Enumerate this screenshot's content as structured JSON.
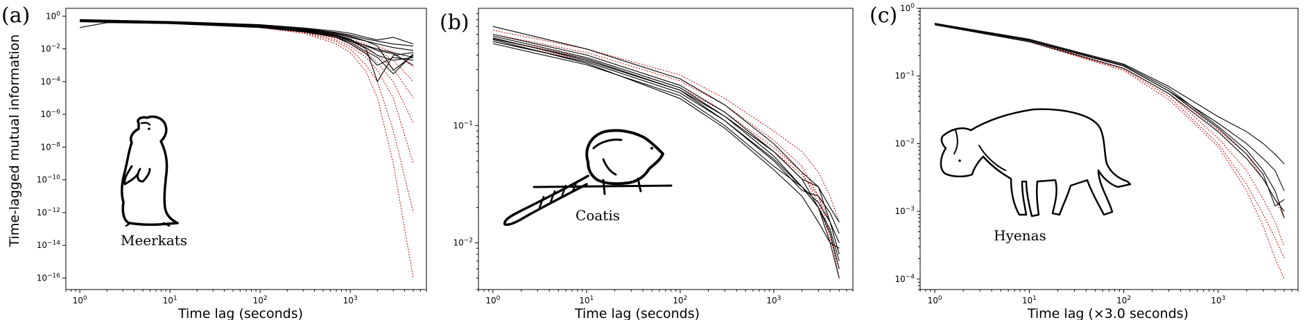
{
  "chart_data": [
    {
      "type": "line",
      "panel_label": "(a)",
      "title": "",
      "xlabel": "Time lag (seconds)",
      "ylabel": "Time-lagged mutual information",
      "xscale": "log",
      "yscale": "log",
      "xlim": [
        0.7,
        7000
      ],
      "ylim": [
        2e-17,
        3
      ],
      "xticks": [
        {
          "v": 1,
          "label": "10^0"
        },
        {
          "v": 10,
          "label": "10^1"
        },
        {
          "v": 100,
          "label": "10^2"
        },
        {
          "v": 1000,
          "label": "10^3"
        }
      ],
      "yticks": [
        {
          "v": 1,
          "label": "10^0"
        },
        {
          "v": 0.01,
          "label": "10^-2"
        },
        {
          "v": 0.0001,
          "label": "10^-4"
        },
        {
          "v": 1e-06,
          "label": "10^-6"
        },
        {
          "v": 1e-08,
          "label": "10^-8"
        },
        {
          "v": 1e-10,
          "label": "10^-10"
        },
        {
          "v": 1e-12,
          "label": "10^-12"
        },
        {
          "v": 1e-14,
          "label": "10^-14"
        },
        {
          "v": 1e-16,
          "label": "10^-16"
        }
      ],
      "grid": false,
      "animal_label": "Meerkats",
      "animal_icon": "meerkat-silhouette",
      "series_colors": {
        "data": "#000000",
        "fit": "#c00000"
      },
      "data_series": [
        {
          "x": [
            1,
            10,
            100,
            300,
            700,
            1000,
            1500,
            2000,
            3000,
            5000
          ],
          "y": [
            0.55,
            0.42,
            0.25,
            0.15,
            0.08,
            0.05,
            0.03,
            0.02,
            0.012,
            0.008
          ]
        },
        {
          "x": [
            1,
            10,
            100,
            300,
            700,
            1000,
            1500,
            2000,
            3000,
            5000
          ],
          "y": [
            0.6,
            0.45,
            0.28,
            0.18,
            0.1,
            0.07,
            0.04,
            0.03,
            0.02,
            0.015
          ]
        },
        {
          "x": [
            1,
            10,
            100,
            300,
            700,
            1000,
            1500,
            2000,
            3000,
            5000
          ],
          "y": [
            0.5,
            0.38,
            0.22,
            0.12,
            0.06,
            0.03,
            0.012,
            0.004,
            0.002,
            0.003
          ]
        },
        {
          "x": [
            1,
            10,
            100,
            300,
            700,
            1000,
            1500,
            2000,
            3000,
            5000
          ],
          "y": [
            0.45,
            0.35,
            0.2,
            0.11,
            0.05,
            0.02,
            0.005,
            0.001,
            0.003,
            0.002
          ]
        },
        {
          "x": [
            1,
            10,
            100,
            300,
            700,
            1000,
            1500,
            2000,
            3000,
            5000
          ],
          "y": [
            0.52,
            0.4,
            0.24,
            0.14,
            0.07,
            0.04,
            0.01,
            0.0001,
            0.004,
            0.006
          ]
        },
        {
          "x": [
            1,
            10,
            100,
            300,
            700,
            1000,
            1500,
            2000,
            3000,
            5000
          ],
          "y": [
            0.58,
            0.44,
            0.27,
            0.16,
            0.09,
            0.06,
            0.03,
            0.015,
            0.0005,
            0.004
          ]
        },
        {
          "x": [
            1,
            10,
            100,
            300,
            700,
            1000,
            1500,
            2000,
            3000,
            5000
          ],
          "y": [
            0.62,
            0.47,
            0.3,
            0.19,
            0.12,
            0.09,
            0.05,
            0.035,
            0.05,
            0.02
          ]
        },
        {
          "x": [
            1,
            10,
            100,
            300,
            700,
            1000,
            1500,
            2000,
            3000,
            5000
          ],
          "y": [
            0.48,
            0.37,
            0.21,
            0.12,
            0.05,
            0.025,
            0.007,
            0.003,
            0.0003,
            0.005
          ]
        },
        {
          "x": [
            1,
            10,
            100,
            300,
            700,
            1000,
            1500,
            2000,
            3000,
            5000
          ],
          "y": [
            0.5,
            0.39,
            0.23,
            0.13,
            0.065,
            0.035,
            0.015,
            0.008,
            0.005,
            0.001
          ]
        },
        {
          "x": [
            1,
            2,
            4,
            10,
            100,
            300,
            700,
            1000,
            2000,
            5000
          ],
          "y": [
            0.2,
            0.4,
            0.38,
            0.35,
            0.22,
            0.13,
            0.06,
            0.03,
            0.01,
            0.003
          ]
        }
      ],
      "fit_series": [
        {
          "x": [
            1,
            10,
            100,
            300,
            700,
            1000,
            1500,
            2000,
            3000,
            5000
          ],
          "y": [
            0.55,
            0.4,
            0.2,
            0.09,
            0.02,
            0.006,
            0.0004,
            1e-05,
            1e-09,
            1e-16
          ]
        },
        {
          "x": [
            1,
            10,
            100,
            300,
            700,
            1000,
            1500,
            2000,
            3000,
            5000
          ],
          "y": [
            0.55,
            0.4,
            0.21,
            0.1,
            0.028,
            0.01,
            0.001,
            0.0001,
            1e-07,
            1e-12
          ]
        },
        {
          "x": [
            1,
            10,
            100,
            300,
            700,
            1000,
            1500,
            2000,
            3000,
            5000
          ],
          "y": [
            0.55,
            0.41,
            0.22,
            0.11,
            0.035,
            0.014,
            0.003,
            0.0005,
            1e-05,
            1e-09
          ]
        },
        {
          "x": [
            1,
            10,
            100,
            300,
            700,
            1000,
            1500,
            2000,
            3000,
            5000
          ],
          "y": [
            0.56,
            0.42,
            0.23,
            0.12,
            0.045,
            0.02,
            0.006,
            0.0015,
            0.0001,
            3e-07
          ]
        },
        {
          "x": [
            1,
            10,
            100,
            300,
            700,
            1000,
            1500,
            2000,
            3000,
            5000
          ],
          "y": [
            0.57,
            0.43,
            0.24,
            0.13,
            0.055,
            0.03,
            0.01,
            0.004,
            0.0006,
            1e-05
          ]
        },
        {
          "x": [
            1,
            10,
            100,
            300,
            700,
            1000,
            1500,
            2000,
            3000,
            5000
          ],
          "y": [
            0.58,
            0.44,
            0.26,
            0.15,
            0.07,
            0.04,
            0.018,
            0.008,
            0.002,
            0.0001
          ]
        },
        {
          "x": [
            1,
            10,
            100,
            300,
            700,
            1000,
            1500,
            2000,
            3000,
            5000
          ],
          "y": [
            0.6,
            0.45,
            0.28,
            0.17,
            0.09,
            0.055,
            0.03,
            0.015,
            0.006,
            0.0008
          ]
        }
      ]
    },
    {
      "type": "line",
      "panel_label": "(b)",
      "title": "",
      "xlabel": "Time lag (seconds)",
      "ylabel": "",
      "xscale": "log",
      "yscale": "log",
      "xlim": [
        0.7,
        7000
      ],
      "ylim": [
        0.004,
        1
      ],
      "xticks": [
        {
          "v": 1,
          "label": "10^0"
        },
        {
          "v": 10,
          "label": "10^1"
        },
        {
          "v": 100,
          "label": "10^2"
        },
        {
          "v": 1000,
          "label": "10^3"
        }
      ],
      "yticks": [
        {
          "v": 0.1,
          "label": "10^-1"
        },
        {
          "v": 0.01,
          "label": "10^-2"
        }
      ],
      "grid": false,
      "animal_label": "Coatis",
      "animal_icon": "coati-silhouette",
      "series_colors": {
        "data": "#000000",
        "fit": "#c00000"
      },
      "data_series": [
        {
          "x": [
            1,
            10,
            100,
            300,
            1000,
            2000,
            3000,
            4000,
            5000
          ],
          "y": [
            0.7,
            0.45,
            0.25,
            0.15,
            0.07,
            0.04,
            0.03,
            0.015,
            0.008
          ]
        },
        {
          "x": [
            1,
            10,
            100,
            300,
            1000,
            2000,
            3000,
            4000,
            5000
          ],
          "y": [
            0.6,
            0.4,
            0.22,
            0.13,
            0.06,
            0.035,
            0.02,
            0.012,
            0.006
          ]
        },
        {
          "x": [
            1,
            10,
            100,
            300,
            1000,
            2000,
            3000,
            4000,
            5000
          ],
          "y": [
            0.55,
            0.37,
            0.2,
            0.12,
            0.055,
            0.03,
            0.022,
            0.015,
            0.01
          ]
        },
        {
          "x": [
            1,
            10,
            100,
            300,
            1000,
            2000,
            3000,
            4000,
            5000
          ],
          "y": [
            0.52,
            0.35,
            0.19,
            0.11,
            0.05,
            0.028,
            0.025,
            0.018,
            0.012
          ]
        },
        {
          "x": [
            1,
            10,
            100,
            300,
            1000,
            2000,
            3000,
            4000,
            5000
          ],
          "y": [
            0.58,
            0.38,
            0.21,
            0.12,
            0.06,
            0.035,
            0.03,
            0.02,
            0.015
          ]
        },
        {
          "x": [
            1,
            10,
            100,
            300,
            1000,
            2000,
            3000,
            4000,
            5000
          ],
          "y": [
            0.5,
            0.33,
            0.18,
            0.1,
            0.045,
            0.03,
            0.02,
            0.01,
            0.005
          ]
        },
        {
          "x": [
            1,
            10,
            100,
            300,
            1000,
            2000,
            3000,
            4000,
            5000
          ],
          "y": [
            0.56,
            0.36,
            0.2,
            0.11,
            0.052,
            0.03,
            0.02,
            0.013,
            0.007
          ]
        },
        {
          "x": [
            1,
            10,
            100,
            300,
            1000,
            2000,
            3000,
            4000,
            5000
          ],
          "y": [
            0.54,
            0.34,
            0.17,
            0.095,
            0.042,
            0.025,
            0.015,
            0.01,
            0.009
          ]
        }
      ],
      "fit_series": [
        {
          "x": [
            1,
            10,
            100,
            300,
            1000,
            2000,
            3000,
            4000,
            5000
          ],
          "y": [
            0.6,
            0.42,
            0.24,
            0.15,
            0.075,
            0.045,
            0.025,
            0.012,
            0.005
          ]
        },
        {
          "x": [
            1,
            10,
            100,
            300,
            1000,
            2000,
            3000,
            4000,
            5000
          ],
          "y": [
            0.55,
            0.38,
            0.21,
            0.13,
            0.065,
            0.04,
            0.022,
            0.011,
            0.006
          ]
        },
        {
          "x": [
            1,
            10,
            100,
            300,
            1000,
            2000,
            3000,
            4000,
            5000
          ],
          "y": [
            0.52,
            0.36,
            0.2,
            0.12,
            0.06,
            0.038,
            0.025,
            0.015,
            0.008
          ]
        },
        {
          "x": [
            1,
            10,
            100,
            300,
            1000,
            2000,
            3000,
            4000,
            5000
          ],
          "y": [
            0.65,
            0.45,
            0.27,
            0.17,
            0.09,
            0.06,
            0.04,
            0.025,
            0.015
          ]
        }
      ]
    },
    {
      "type": "line",
      "panel_label": "(c)",
      "title": "",
      "xlabel": "Time lag (×3.0 seconds)",
      "ylabel": "",
      "xscale": "log",
      "yscale": "log",
      "xlim": [
        0.7,
        7000
      ],
      "ylim": [
        7e-05,
        1
      ],
      "xticks": [
        {
          "v": 1,
          "label": "10^0"
        },
        {
          "v": 10,
          "label": "10^1"
        },
        {
          "v": 100,
          "label": "10^2"
        },
        {
          "v": 1000,
          "label": "10^3"
        }
      ],
      "yticks": [
        {
          "v": 1,
          "label": "10^0"
        },
        {
          "v": 0.1,
          "label": "10^-1"
        },
        {
          "v": 0.01,
          "label": "10^-2"
        },
        {
          "v": 0.001,
          "label": "10^-3"
        },
        {
          "v": 0.0001,
          "label": "10^-4"
        }
      ],
      "grid": false,
      "animal_label": "Hyenas",
      "animal_icon": "hyena-silhouette",
      "series_colors": {
        "data": "#000000",
        "fit": "#c00000"
      },
      "data_series": [
        {
          "x": [
            1,
            10,
            100,
            300,
            1000,
            2000,
            3000,
            4000,
            5000
          ],
          "y": [
            0.6,
            0.35,
            0.15,
            0.07,
            0.025,
            0.015,
            0.01,
            0.007,
            0.005
          ]
        },
        {
          "x": [
            1,
            10,
            100,
            300,
            1000,
            2000,
            3000,
            4000,
            5000
          ],
          "y": [
            0.58,
            0.33,
            0.14,
            0.06,
            0.02,
            0.01,
            0.006,
            0.004,
            0.002
          ]
        },
        {
          "x": [
            1,
            10,
            100,
            300,
            1000,
            2000,
            3000,
            4000,
            5000
          ],
          "y": [
            0.57,
            0.32,
            0.13,
            0.055,
            0.015,
            0.006,
            0.003,
            0.0015,
            0.001
          ]
        },
        {
          "x": [
            1,
            10,
            100,
            300,
            1000,
            2000,
            3000,
            4000,
            5000
          ],
          "y": [
            0.59,
            0.34,
            0.145,
            0.065,
            0.018,
            0.008,
            0.004,
            0.002,
            0.0008
          ]
        },
        {
          "x": [
            1,
            10,
            100,
            300,
            1000,
            2000,
            3000,
            4000,
            5000
          ],
          "y": [
            0.6,
            0.34,
            0.14,
            0.06,
            0.017,
            0.007,
            0.0035,
            0.0012,
            0.0015
          ]
        }
      ],
      "fit_series": [
        {
          "x": [
            1,
            10,
            100,
            300,
            1000,
            2000,
            3000,
            4000,
            5000
          ],
          "y": [
            0.58,
            0.32,
            0.12,
            0.045,
            0.009,
            0.002,
            0.0006,
            0.0002,
            0.0001
          ]
        },
        {
          "x": [
            1,
            10,
            100,
            300,
            1000,
            2000,
            3000,
            4000,
            5000
          ],
          "y": [
            0.58,
            0.32,
            0.125,
            0.05,
            0.01,
            0.0025,
            0.0009,
            0.0004,
            0.0002
          ]
        },
        {
          "x": [
            1,
            10,
            100,
            300,
            1000,
            2000,
            3000,
            4000,
            5000
          ],
          "y": [
            0.59,
            0.33,
            0.13,
            0.055,
            0.012,
            0.004,
            0.0015,
            0.0007,
            0.0003
          ]
        },
        {
          "x": [
            1,
            10,
            100,
            300,
            1000,
            2000,
            3000,
            4000,
            5000
          ],
          "y": [
            0.6,
            0.34,
            0.14,
            0.06,
            0.016,
            0.007,
            0.003,
            0.0015,
            0.0008
          ]
        }
      ]
    }
  ]
}
